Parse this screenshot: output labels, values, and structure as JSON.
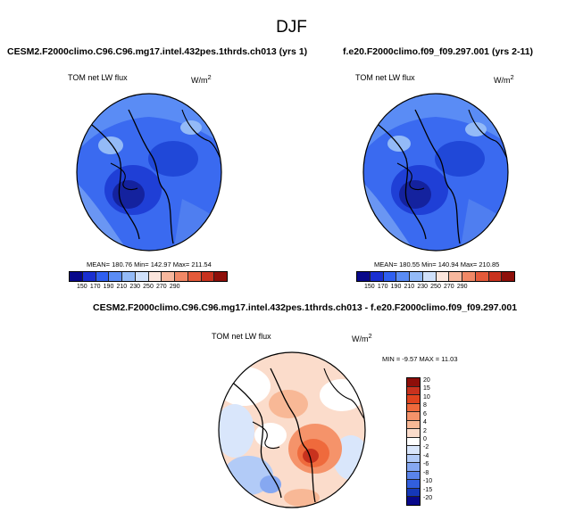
{
  "title": "DJF",
  "panels": [
    {
      "title": "CESM2.F2000climo.C96.C96.mg17.intel.432pes.1thrds.ch013 (yrs 1)",
      "field": "TOM net LW flux",
      "units": "W/m",
      "units_sup": "2",
      "stats": "MEAN= 180.76   Min= 142.97   Max= 211.54"
    },
    {
      "title": "f.e20.F2000climo.f09_f09.297.001 (yrs 2-11)",
      "field": "TOM net LW flux",
      "units": "W/m",
      "units_sup": "2",
      "stats": "MEAN= 180.55   Min= 140.94   Max= 210.85"
    },
    {
      "title": "CESM2.F2000climo.C96.C96.mg17.intel.432pes.1thrds.ch013 - f.e20.F2000climo.f09_f09.297.001",
      "field": "TOM net LW flux",
      "units": "W/m",
      "units_sup": "2",
      "stats": "MIN = -9.57 MAX = 11.03"
    }
  ],
  "colorbar_abs": {
    "ticks": [
      "150",
      "170",
      "190",
      "210",
      "230",
      "250",
      "270",
      "290"
    ],
    "colors": [
      "#08088a",
      "#1a2fd0",
      "#2f5ff0",
      "#5a8cf5",
      "#93baf7",
      "#cfe0fa",
      "#fbe5dc",
      "#f7b79d",
      "#f08866",
      "#e45a3a",
      "#c8321e",
      "#8e0f0a"
    ]
  },
  "colorbar_diff": {
    "ticks": [
      "20",
      "15",
      "10",
      "8",
      "6",
      "4",
      "2",
      "0",
      "-2",
      "-4",
      "-6",
      "-8",
      "-10",
      "-15",
      "-20"
    ],
    "colors": [
      "#8e0f0a",
      "#c8321e",
      "#e0441f",
      "#ef6a3c",
      "#f5936a",
      "#f8b896",
      "#fbdccb",
      "#ffffff",
      "#d9e6fb",
      "#b2cbf7",
      "#86a8f1",
      "#5a84ea",
      "#325fdd",
      "#1538b8",
      "#08088a"
    ]
  },
  "chart_data": {
    "type": "map",
    "projection": "north polar stereographic",
    "season": "DJF",
    "maps": [
      {
        "case": "CESM2.F2000climo.C96.C96.mg17.intel.432pes.1thrds.ch013 (yrs 1)",
        "mean": 180.76,
        "min": 142.97,
        "max": 211.54,
        "levels": [
          150,
          170,
          190,
          210,
          230,
          250,
          270,
          290
        ]
      },
      {
        "case": "f.e20.F2000climo.f09_f09.297.001 (yrs 2-11)",
        "mean": 180.55,
        "min": 140.94,
        "max": 210.85,
        "levels": [
          150,
          170,
          190,
          210,
          230,
          250,
          270,
          290
        ]
      },
      {
        "case": "difference",
        "min": -9.57,
        "max": 11.03,
        "levels": [
          -20,
          -15,
          -10,
          -8,
          -6,
          -4,
          -2,
          0,
          2,
          4,
          6,
          8,
          10,
          15,
          20
        ]
      }
    ]
  }
}
